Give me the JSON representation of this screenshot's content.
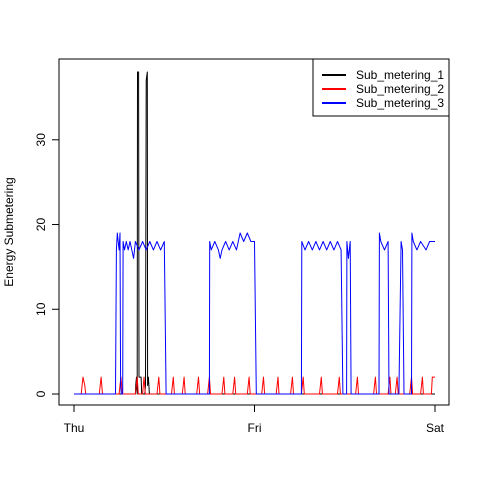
{
  "chart_data": {
    "type": "line",
    "title": "",
    "xlabel": "",
    "ylabel": "Energy Submetering",
    "x_ticks": [
      "Thu",
      "Fri",
      "Sat"
    ],
    "x_domain_days": [
      "Thu",
      "Sat"
    ],
    "ylim": [
      0,
      38
    ],
    "y_ticks": [
      0,
      10,
      20,
      30
    ],
    "grid": false,
    "legend_position": "top-right",
    "series": [
      {
        "name": "Sub_metering_1",
        "color": "#000000",
        "points": [
          [
            0.0,
            0
          ],
          [
            0.34,
            0
          ],
          [
            0.342,
            1
          ],
          [
            0.346,
            2
          ],
          [
            0.35,
            0
          ],
          [
            0.352,
            38
          ],
          [
            0.358,
            38
          ],
          [
            0.36,
            2
          ],
          [
            0.372,
            2
          ],
          [
            0.375,
            0
          ],
          [
            0.392,
            0
          ],
          [
            0.396,
            1
          ],
          [
            0.4,
            37
          ],
          [
            0.406,
            38
          ],
          [
            0.408,
            1
          ],
          [
            0.412,
            2
          ],
          [
            0.418,
            0
          ],
          [
            1.0,
            0
          ],
          [
            1.4,
            0
          ],
          [
            2.0,
            0
          ]
        ]
      },
      {
        "name": "Sub_metering_2",
        "color": "#ff0000",
        "points": [
          [
            0.0,
            0
          ],
          [
            0.04,
            0
          ],
          [
            0.045,
            1
          ],
          [
            0.05,
            2
          ],
          [
            0.06,
            1
          ],
          [
            0.065,
            0
          ],
          [
            0.14,
            0
          ],
          [
            0.145,
            1
          ],
          [
            0.15,
            2
          ],
          [
            0.158,
            0
          ],
          [
            0.25,
            0
          ],
          [
            0.255,
            1
          ],
          [
            0.26,
            2
          ],
          [
            0.268,
            0
          ],
          [
            0.34,
            0
          ],
          [
            0.345,
            1
          ],
          [
            0.35,
            2
          ],
          [
            0.356,
            0
          ],
          [
            0.38,
            0
          ],
          [
            0.384,
            1
          ],
          [
            0.388,
            2
          ],
          [
            0.395,
            0
          ],
          [
            0.46,
            0
          ],
          [
            0.465,
            1
          ],
          [
            0.47,
            2
          ],
          [
            0.476,
            0
          ],
          [
            0.54,
            0
          ],
          [
            0.545,
            1
          ],
          [
            0.55,
            2
          ],
          [
            0.556,
            0
          ],
          [
            0.6,
            0
          ],
          [
            0.605,
            1
          ],
          [
            0.61,
            2
          ],
          [
            0.616,
            0
          ],
          [
            0.68,
            0
          ],
          [
            0.685,
            1
          ],
          [
            0.69,
            2
          ],
          [
            0.696,
            0
          ],
          [
            0.74,
            0
          ],
          [
            0.745,
            1
          ],
          [
            0.75,
            2
          ],
          [
            0.756,
            0
          ],
          [
            0.82,
            0
          ],
          [
            0.825,
            1
          ],
          [
            0.83,
            2
          ],
          [
            0.836,
            0
          ],
          [
            0.88,
            0
          ],
          [
            0.885,
            1
          ],
          [
            0.89,
            2
          ],
          [
            0.896,
            0
          ],
          [
            0.96,
            0
          ],
          [
            0.965,
            1
          ],
          [
            0.97,
            2
          ],
          [
            0.976,
            0
          ],
          [
            1.04,
            0
          ],
          [
            1.045,
            1
          ],
          [
            1.05,
            2
          ],
          [
            1.056,
            0
          ],
          [
            1.12,
            0
          ],
          [
            1.125,
            1
          ],
          [
            1.13,
            2
          ],
          [
            1.136,
            0
          ],
          [
            1.2,
            0
          ],
          [
            1.205,
            1
          ],
          [
            1.21,
            2
          ],
          [
            1.216,
            0
          ],
          [
            1.26,
            0
          ],
          [
            1.265,
            1
          ],
          [
            1.27,
            2
          ],
          [
            1.276,
            0
          ],
          [
            1.36,
            0
          ],
          [
            1.365,
            1
          ],
          [
            1.37,
            2
          ],
          [
            1.376,
            0
          ],
          [
            1.46,
            0
          ],
          [
            1.465,
            1
          ],
          [
            1.47,
            2
          ],
          [
            1.476,
            0
          ],
          [
            1.56,
            0
          ],
          [
            1.565,
            1
          ],
          [
            1.57,
            2
          ],
          [
            1.576,
            0
          ],
          [
            1.66,
            0
          ],
          [
            1.665,
            1
          ],
          [
            1.67,
            2
          ],
          [
            1.676,
            0
          ],
          [
            1.74,
            0
          ],
          [
            1.745,
            1
          ],
          [
            1.75,
            2
          ],
          [
            1.756,
            0
          ],
          [
            1.78,
            0
          ],
          [
            1.785,
            1
          ],
          [
            1.79,
            2
          ],
          [
            1.796,
            0
          ],
          [
            1.86,
            0
          ],
          [
            1.865,
            1
          ],
          [
            1.87,
            2
          ],
          [
            1.876,
            0
          ],
          [
            1.92,
            0
          ],
          [
            1.925,
            1
          ],
          [
            1.93,
            2
          ],
          [
            1.936,
            0
          ],
          [
            1.98,
            0
          ],
          [
            1.985,
            2
          ],
          [
            2.0,
            2
          ]
        ]
      },
      {
        "name": "Sub_metering_3",
        "color": "#0000ff",
        "points": [
          [
            0.0,
            0
          ],
          [
            0.23,
            0
          ],
          [
            0.235,
            17
          ],
          [
            0.24,
            19
          ],
          [
            0.245,
            18
          ],
          [
            0.25,
            17
          ],
          [
            0.255,
            19
          ],
          [
            0.258,
            1
          ],
          [
            0.262,
            0
          ],
          [
            0.27,
            0
          ],
          [
            0.272,
            18
          ],
          [
            0.28,
            17
          ],
          [
            0.29,
            18
          ],
          [
            0.3,
            17
          ],
          [
            0.31,
            18
          ],
          [
            0.32,
            17
          ],
          [
            0.33,
            16
          ],
          [
            0.34,
            18
          ],
          [
            0.36,
            17
          ],
          [
            0.38,
            18
          ],
          [
            0.4,
            17
          ],
          [
            0.42,
            18
          ],
          [
            0.44,
            17
          ],
          [
            0.46,
            18
          ],
          [
            0.48,
            17
          ],
          [
            0.5,
            18
          ],
          [
            0.51,
            0
          ],
          [
            0.75,
            0
          ],
          [
            0.752,
            18
          ],
          [
            0.76,
            17
          ],
          [
            0.78,
            18
          ],
          [
            0.8,
            17
          ],
          [
            0.81,
            16
          ],
          [
            0.82,
            17
          ],
          [
            0.84,
            18
          ],
          [
            0.86,
            17
          ],
          [
            0.88,
            18
          ],
          [
            0.9,
            17
          ],
          [
            0.92,
            19
          ],
          [
            0.94,
            18
          ],
          [
            0.96,
            19
          ],
          [
            0.98,
            18
          ],
          [
            1.0,
            18
          ],
          [
            1.01,
            0
          ],
          [
            1.26,
            0
          ],
          [
            1.262,
            18
          ],
          [
            1.28,
            17
          ],
          [
            1.3,
            18
          ],
          [
            1.32,
            17
          ],
          [
            1.34,
            18
          ],
          [
            1.36,
            17
          ],
          [
            1.38,
            18
          ],
          [
            1.4,
            17
          ],
          [
            1.42,
            18
          ],
          [
            1.44,
            17
          ],
          [
            1.46,
            18
          ],
          [
            1.48,
            17
          ],
          [
            1.49,
            0
          ],
          [
            1.51,
            0
          ],
          [
            1.512,
            18
          ],
          [
            1.52,
            16
          ],
          [
            1.53,
            18
          ],
          [
            1.535,
            0
          ],
          [
            1.69,
            0
          ],
          [
            1.692,
            19
          ],
          [
            1.7,
            18
          ],
          [
            1.72,
            17
          ],
          [
            1.74,
            18
          ],
          [
            1.745,
            0
          ],
          [
            1.8,
            0
          ],
          [
            1.812,
            18
          ],
          [
            1.82,
            17
          ],
          [
            1.828,
            0
          ],
          [
            1.87,
            0
          ],
          [
            1.872,
            19
          ],
          [
            1.88,
            18
          ],
          [
            1.9,
            17
          ],
          [
            1.92,
            18
          ],
          [
            1.95,
            17
          ],
          [
            1.97,
            18
          ],
          [
            2.0,
            18
          ]
        ]
      }
    ]
  }
}
